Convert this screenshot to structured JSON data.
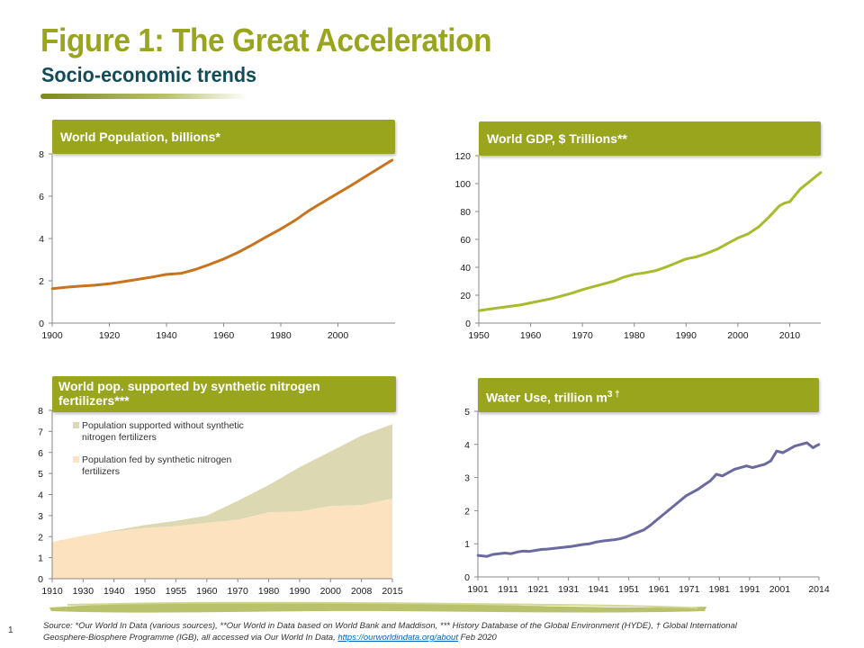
{
  "page": {
    "title": "Figure 1: The Great Acceleration",
    "subtitle": "Socio-economic trends",
    "page_number": "1",
    "footnote_text": "Source: *Our World In Data (various sources), **Our World in Data based on World Bank and Maddison, *** History Database of the Global Environment (HYDE), † Global International Geosphere-Biosphere Programme (IGB), all accessed via Our World In Data, ",
    "footnote_link": "https://ourworldindata.org/about",
    "footnote_end": " Feb 2020"
  },
  "colors": {
    "brand_green": "#9aa51e",
    "title_teal": "#124d57",
    "population_line": "#c8731e",
    "gdp_line": "#a8bb2e",
    "water_line": "#6b6aa0",
    "without_fertilizer_area": "#dcd9b2",
    "fed_by_fertilizer_area": "#fde2c0"
  },
  "chart_data": [
    {
      "id": "population",
      "type": "line",
      "title": "World Population, billions*",
      "xlabel": "",
      "ylabel": "",
      "xlim": [
        1900,
        2020
      ],
      "ylim": [
        0,
        8
      ],
      "xticks": [
        "1900",
        "1920",
        "1940",
        "1960",
        "1980",
        "2000"
      ],
      "yticks": [
        "0",
        "2",
        "4",
        "6",
        "8"
      ],
      "grid": false,
      "x": [
        1900,
        1905,
        1910,
        1915,
        1920,
        1925,
        1930,
        1935,
        1940,
        1945,
        1950,
        1955,
        1960,
        1965,
        1970,
        1975,
        1980,
        1985,
        1990,
        1995,
        2000,
        2005,
        2010,
        2015,
        2019
      ],
      "y": [
        1.63,
        1.7,
        1.75,
        1.79,
        1.86,
        1.96,
        2.07,
        2.18,
        2.3,
        2.35,
        2.53,
        2.77,
        3.03,
        3.34,
        3.7,
        4.08,
        4.45,
        4.86,
        5.33,
        5.74,
        6.14,
        6.54,
        6.96,
        7.38,
        7.71
      ]
    },
    {
      "id": "gdp",
      "type": "line",
      "title": "World GDP, $ Trillions**",
      "xlabel": "",
      "ylabel": "",
      "xlim": [
        1950,
        2016
      ],
      "ylim": [
        0,
        120
      ],
      "xticks": [
        "1950",
        "1960",
        "1970",
        "1980",
        "1990",
        "2000",
        "2010"
      ],
      "yticks": [
        "0",
        "20",
        "40",
        "60",
        "80",
        "100",
        "120"
      ],
      "grid": false,
      "x": [
        1950,
        1952,
        1954,
        1956,
        1958,
        1960,
        1962,
        1964,
        1966,
        1968,
        1970,
        1972,
        1974,
        1976,
        1978,
        1980,
        1982,
        1984,
        1986,
        1988,
        1990,
        1992,
        1994,
        1996,
        1998,
        2000,
        2002,
        2004,
        2006,
        2008,
        2009,
        2010,
        2012,
        2014,
        2016
      ],
      "y": [
        9,
        10,
        11,
        12,
        13,
        14.5,
        16,
        17.5,
        19.5,
        21.5,
        24,
        26,
        28,
        30,
        33,
        35,
        36,
        37.5,
        40,
        43,
        46,
        47.5,
        50,
        53,
        57,
        61,
        64,
        69,
        76,
        84,
        86,
        87,
        96,
        102,
        108
      ]
    },
    {
      "id": "fertilizer",
      "type": "area",
      "title": "World pop. supported by synthetic nitrogen fertilizers***",
      "xlabel": "",
      "ylabel": "",
      "ylim": [
        0,
        8
      ],
      "categories": [
        "1910",
        "1930",
        "1940",
        "1950",
        "1955",
        "1960",
        "1970",
        "1980",
        "1990",
        "2000",
        "2008",
        "2015"
      ],
      "yticks": [
        "0",
        "1",
        "2",
        "3",
        "4",
        "5",
        "6",
        "7",
        "8"
      ],
      "grid": false,
      "legend_position": "top-left",
      "stacked": true,
      "series": [
        {
          "name": "Population fed by synthetic nitrogen fertilizers",
          "values": [
            1.75,
            2.05,
            2.25,
            2.4,
            2.5,
            2.65,
            2.8,
            3.15,
            3.2,
            3.45,
            3.5,
            3.8
          ]
        },
        {
          "name": "Population supported without synthetic nitrogen fertilizers",
          "values": [
            0.0,
            0.0,
            0.05,
            0.15,
            0.25,
            0.35,
            0.9,
            1.3,
            2.1,
            2.6,
            3.3,
            3.55
          ]
        }
      ]
    },
    {
      "id": "water",
      "type": "line",
      "title": "Water Use, trillion m",
      "title_superscript": "3 †",
      "xlabel": "",
      "ylabel": "",
      "xlim": [
        1901,
        2014
      ],
      "ylim": [
        0,
        5
      ],
      "xticks": [
        "1901",
        "1911",
        "1921",
        "1931",
        "1941",
        "1951",
        "1961",
        "1971",
        "1981",
        "1991",
        "2001",
        "2014"
      ],
      "yticks": [
        "0",
        "1",
        "2",
        "3",
        "4",
        "5"
      ],
      "grid": false,
      "x": [
        1901,
        1904,
        1906,
        1908,
        1910,
        1912,
        1914,
        1916,
        1918,
        1920,
        1922,
        1924,
        1926,
        1928,
        1930,
        1932,
        1934,
        1936,
        1938,
        1940,
        1942,
        1944,
        1946,
        1948,
        1950,
        1952,
        1954,
        1956,
        1958,
        1960,
        1962,
        1964,
        1966,
        1968,
        1970,
        1972,
        1974,
        1976,
        1978,
        1980,
        1982,
        1984,
        1986,
        1988,
        1990,
        1992,
        1994,
        1996,
        1998,
        2000,
        2002,
        2004,
        2006,
        2008,
        2010,
        2012,
        2013,
        2014
      ],
      "y": [
        0.65,
        0.62,
        0.68,
        0.7,
        0.72,
        0.7,
        0.75,
        0.78,
        0.77,
        0.8,
        0.83,
        0.84,
        0.86,
        0.88,
        0.9,
        0.92,
        0.95,
        0.98,
        1.0,
        1.05,
        1.08,
        1.1,
        1.12,
        1.15,
        1.2,
        1.28,
        1.35,
        1.42,
        1.55,
        1.7,
        1.85,
        2.0,
        2.15,
        2.3,
        2.45,
        2.55,
        2.65,
        2.78,
        2.9,
        3.1,
        3.05,
        3.15,
        3.25,
        3.3,
        3.35,
        3.3,
        3.35,
        3.4,
        3.5,
        3.8,
        3.75,
        3.85,
        3.95,
        4.0,
        4.05,
        3.9,
        3.95,
        4.0
      ]
    }
  ]
}
